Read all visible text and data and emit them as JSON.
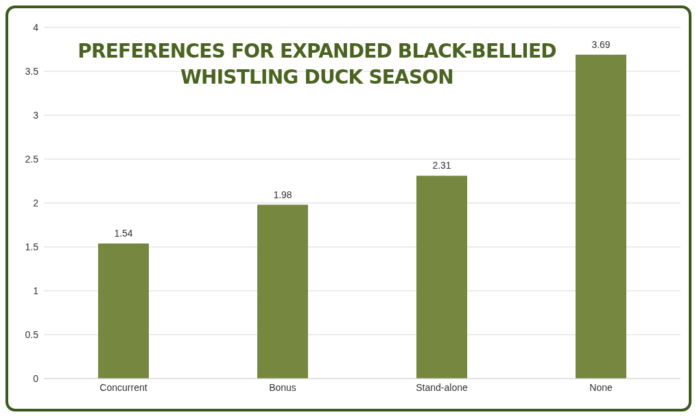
{
  "chart_data": {
    "type": "bar",
    "title": "PREFERENCES FOR EXPANDED BLACK-BELLIED WHISTLING DUCK SEASON",
    "categories": [
      "Concurrent",
      "Bonus",
      "Stand-alone",
      "None"
    ],
    "values": [
      1.54,
      1.98,
      2.31,
      3.69
    ],
    "color": "#76883f",
    "ylim": [
      0,
      4
    ],
    "yticks": [
      0,
      0.5,
      1,
      1.5,
      2,
      2.5,
      3,
      3.5,
      4
    ],
    "grid": "y",
    "data_labels": true
  }
}
